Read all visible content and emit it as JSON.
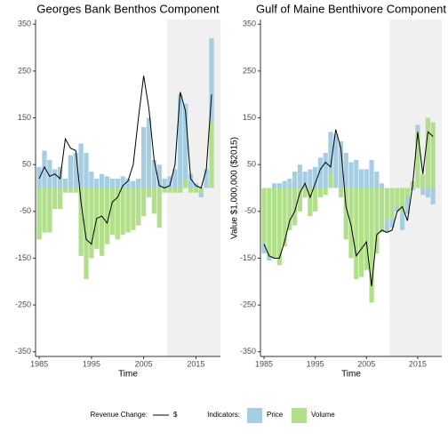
{
  "chart_data": [
    {
      "type": "bar",
      "title": "Georges Bank Benthos Component",
      "x_label": "Time",
      "x": [
        1985,
        1986,
        1987,
        1988,
        1989,
        1990,
        1991,
        1992,
        1993,
        1994,
        1995,
        1996,
        1997,
        1998,
        1999,
        2000,
        2001,
        2002,
        2003,
        2004,
        2005,
        2006,
        2007,
        2008,
        2009,
        2010,
        2011,
        2012,
        2013,
        2014,
        2015,
        2016,
        2017,
        2018
      ],
      "series": [
        {
          "name": "Price",
          "color": "#a6cee3",
          "values": [
            45,
            80,
            60,
            40,
            45,
            20,
            70,
            75,
            95,
            75,
            35,
            20,
            30,
            25,
            20,
            20,
            25,
            20,
            15,
            20,
            130,
            150,
            60,
            50,
            20,
            25,
            40,
            200,
            160,
            30,
            10,
            -10,
            40,
            180
          ]
        },
        {
          "name": "Volume",
          "color": "#b2df8a",
          "values": [
            -110,
            -95,
            -95,
            -45,
            -45,
            -10,
            -10,
            -10,
            -145,
            -195,
            -150,
            -130,
            -145,
            -120,
            -100,
            -110,
            -100,
            -95,
            -90,
            -80,
            -60,
            -20,
            -55,
            -85,
            -10,
            -10,
            -10,
            -10,
            20,
            -10,
            -10,
            -10,
            0,
            140
          ]
        },
        {
          "name": "$",
          "type": "line",
          "color": "#000000",
          "values": [
            20,
            45,
            25,
            30,
            20,
            105,
            85,
            80,
            -30,
            -110,
            -120,
            -65,
            -60,
            -75,
            -30,
            -20,
            5,
            15,
            50,
            150,
            240,
            170,
            60,
            5,
            0,
            5,
            50,
            205,
            165,
            20,
            5,
            0,
            40,
            200
          ]
        }
      ],
      "shaded_from": 2009.5,
      "xlim": [
        1984.3,
        2019.7
      ],
      "xticks": [
        1985,
        1995,
        2005,
        2015
      ],
      "ylim": [
        -360,
        360
      ],
      "yticks": [
        -350,
        -250,
        -150,
        -50,
        50,
        150,
        250,
        350
      ]
    },
    {
      "type": "bar",
      "title": "Gulf of Maine Benthivore Component",
      "x_label": "Time",
      "y_label": "Value $1,000,000 ($2015)",
      "x": [
        1985,
        1986,
        1987,
        1988,
        1989,
        1990,
        1991,
        1992,
        1993,
        1994,
        1995,
        1996,
        1997,
        1998,
        1999,
        2000,
        2001,
        2002,
        2003,
        2004,
        2005,
        2006,
        2007,
        2008,
        2009,
        2010,
        2011,
        2012,
        2013,
        2014,
        2015,
        2016,
        2017,
        2018
      ],
      "series": [
        {
          "name": "Price",
          "color": "#a6cee3",
          "values": [
            -20,
            -10,
            10,
            10,
            15,
            20,
            35,
            50,
            35,
            40,
            45,
            65,
            75,
            90,
            115,
            100,
            75,
            55,
            60,
            40,
            40,
            60,
            35,
            10,
            -25,
            -20,
            -10,
            -35,
            -35,
            -5,
            15,
            -15,
            -20,
            -35
          ]
        },
        {
          "name": "Volume",
          "color": "#b2df8a",
          "values": [
            -120,
            -145,
            -150,
            -165,
            -125,
            -90,
            -80,
            -50,
            -20,
            -60,
            -50,
            -20,
            -15,
            30,
            0,
            -20,
            -110,
            -150,
            -195,
            -190,
            -175,
            -245,
            -140,
            -95,
            -70,
            -65,
            -40,
            -55,
            -20,
            15,
            120,
            30,
            150,
            140
          ]
        },
        {
          "name": "$",
          "type": "line",
          "color": "#000000",
          "values": [
            -120,
            -145,
            -150,
            -150,
            -115,
            -70,
            -50,
            -10,
            10,
            -20,
            10,
            40,
            55,
            45,
            125,
            85,
            -40,
            -80,
            -145,
            -130,
            -115,
            -210,
            -100,
            -90,
            -95,
            -90,
            -50,
            -40,
            -70,
            5,
            120,
            30,
            120,
            110
          ]
        }
      ],
      "shaded_from": 2009.5,
      "xlim": [
        1984.3,
        2019.7
      ],
      "xticks": [
        1985,
        1995,
        2005,
        2015
      ],
      "ylim": [
        -360,
        360
      ],
      "yticks": [
        -350,
        -250,
        -150,
        -50,
        50,
        150,
        250,
        350
      ]
    }
  ],
  "legend": {
    "line_title": "Revenue Change:",
    "bar_title": "Indicators:"
  }
}
